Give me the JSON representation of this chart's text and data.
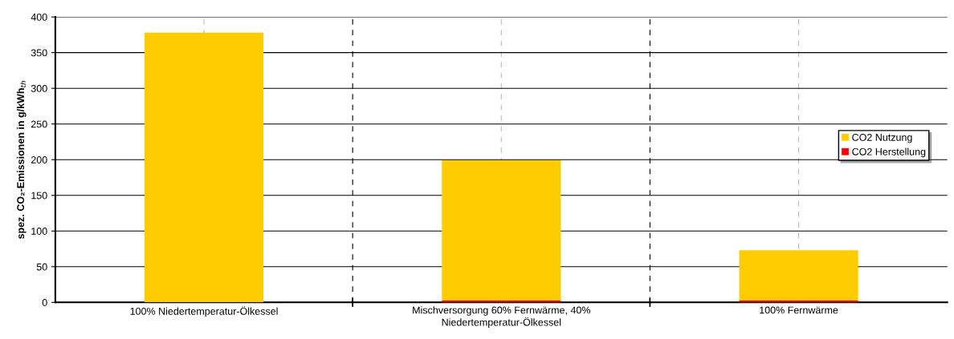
{
  "chart_data": {
    "type": "bar",
    "stacked": true,
    "ylabel": "spez. CO₂-Emissionen in g/kWh$_{th}$",
    "categories": [
      "100% Niedertemperatur-Ölkessel",
      "Mischversorgung 60% Fernwärme, 40%\nNiedertemperatur-Ölkessel",
      "100% Fernwärme"
    ],
    "series": [
      {
        "name": "CO2 Herstellung",
        "color": "#ff0000",
        "values": [
          0,
          3,
          3
        ]
      },
      {
        "name": "CO2 Nutzung",
        "color": "#ffcc00",
        "values": [
          378,
          196,
          70
        ]
      }
    ],
    "ylim": [
      0,
      400
    ],
    "yticks": [
      0,
      50,
      100,
      150,
      200,
      250,
      300,
      350,
      400
    ],
    "grid": true,
    "legend": "right"
  }
}
